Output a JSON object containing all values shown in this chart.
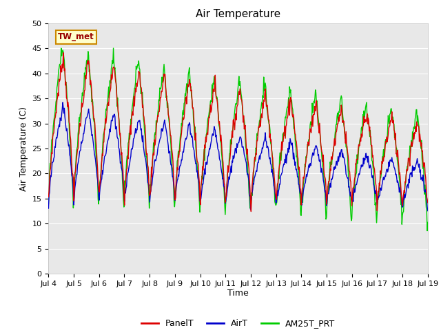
{
  "title": "Air Temperature",
  "ylabel": "Air Temperature (C)",
  "xlabel": "Time",
  "annotation": "TW_met",
  "ylim": [
    0,
    50
  ],
  "yticks": [
    0,
    5,
    10,
    15,
    20,
    25,
    30,
    35,
    40,
    45,
    50
  ],
  "xtick_labels": [
    "Jul 4",
    "Jul 5",
    "Jul 6",
    "Jul 7",
    "Jul 8",
    "Jul 9",
    "Jul 10",
    "Jul 11",
    "Jul 12",
    "Jul 13",
    "Jul 14",
    "Jul 15",
    "Jul 16",
    "Jul 17",
    "Jul 18",
    "Jul 19"
  ],
  "panel_color": "#dd0000",
  "air_color": "#0000cc",
  "am25_color": "#00cc00",
  "fig_bg_color": "#ffffff",
  "plot_bg_color": "#e8e8e8",
  "grid_color": "#ffffff",
  "legend_labels": [
    "PanelT",
    "AirT",
    "AM25T_PRT"
  ],
  "annotation_bg": "#ffffcc",
  "annotation_border": "#cc8800",
  "annotation_text_color": "#990000"
}
